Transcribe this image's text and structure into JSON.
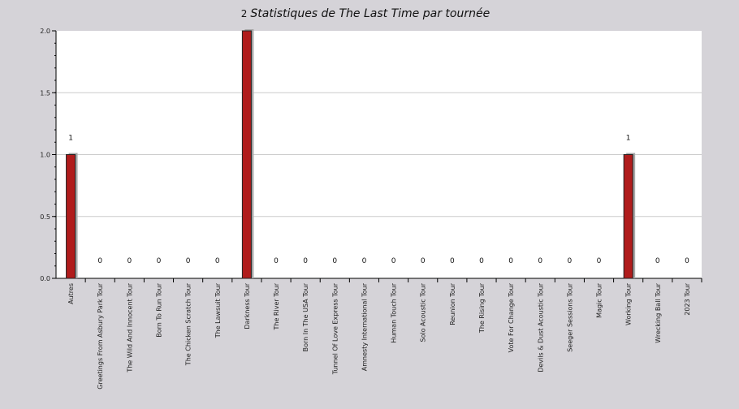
{
  "chart_data": {
    "type": "bar",
    "title_prefix": "2",
    "title": "Statistiques de The Last Time par tournée",
    "xlabel": "",
    "ylabel": "",
    "ylim": [
      0,
      2
    ],
    "yticks": [
      "0.0",
      "0.5",
      "1.0",
      "1.5",
      "2.0"
    ],
    "grid": true,
    "categories": [
      "Autres",
      "Greetings From Asbury Park Tour",
      "The Wild And Innocent Tour",
      "Born To Run Tour",
      "The Chicken Scratch Tour",
      "The Lawsuit Tour",
      "Darkness Tour",
      "The River Tour",
      "Born In The USA Tour",
      "Tunnel Of Love Express Tour",
      "Amnesty International Tour",
      "Human Touch Tour",
      "Solo Acoustic Tour",
      "Reunion Tour",
      "The Rising Tour",
      "Vote For Change Tour",
      "Devils &amp; Dust Acoustic Tour",
      "Seeger Sessions Tour",
      "Magic Tour",
      "Working Tour",
      "Wrecking Ball Tour",
      "2023 Tour"
    ],
    "values": [
      1,
      0,
      0,
      0,
      0,
      0,
      2,
      0,
      0,
      0,
      0,
      0,
      0,
      0,
      0,
      0,
      0,
      0,
      0,
      1,
      0,
      0
    ],
    "data_labels": [
      "1",
      "0",
      "0",
      "0",
      "0",
      "0",
      "",
      "0",
      "0",
      "0",
      "0",
      "0",
      "0",
      "0",
      "0",
      "0",
      "0",
      "0",
      "0",
      "1",
      "0",
      "0"
    ],
    "colors": {
      "bar": "#b01c1c",
      "bar_outline": "#222222",
      "shadow": "#a8a8a8",
      "plot_bg": "#ffffff",
      "page_bg": "#d5d3d8",
      "grid": "#cccccc"
    }
  }
}
